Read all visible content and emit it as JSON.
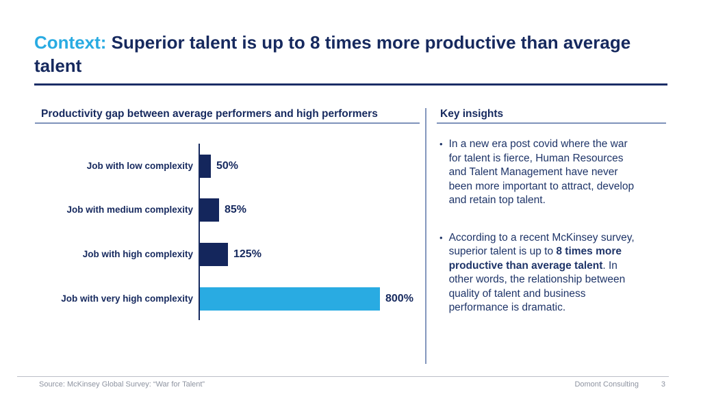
{
  "slide": {
    "title": {
      "prefix": "Context:",
      "rest": " Superior talent is up to 8 times more productive than average talent"
    },
    "left_panel": {
      "header": "Productivity gap between average performers and high performers"
    },
    "right_panel": {
      "header": "Key insights",
      "bullets": [
        {
          "lines": [
            [
              {
                "t": "In a new era post covid where the war"
              }
            ],
            [
              {
                "t": "for talent is fierce, Human Resources"
              }
            ],
            [
              {
                "t": "and Talent Management have never"
              }
            ],
            [
              {
                "t": "been more important to attract, develop"
              }
            ],
            [
              {
                "t": "and retain top talent."
              }
            ]
          ]
        },
        {
          "lines": [
            [
              {
                "t": "According to a recent McKinsey survey,"
              }
            ],
            [
              {
                "t": "superior talent is up to "
              },
              {
                "t": "8 times more",
                "bold": true
              }
            ],
            [
              {
                "t": "productive than average talent",
                "bold": true
              },
              {
                "t": ". In"
              }
            ],
            [
              {
                "t": "other words, the relationship between"
              }
            ],
            [
              {
                "t": "quality of talent and business"
              }
            ],
            [
              {
                "t": "performance is dramatic."
              }
            ]
          ]
        }
      ],
      "bullet_glyph": "•"
    },
    "footer": {
      "source": "Source: McKinsey Global Survey: “War for Talent”",
      "company": "Domont Consulting",
      "page": "3"
    }
  },
  "chart_data": {
    "type": "bar",
    "orientation": "horizontal",
    "title": "Productivity gap between average performers and high performers",
    "categories": [
      "Job with low complexity",
      "Job with medium complexity",
      "Job with high complexity",
      "Job with very high complexity"
    ],
    "values": [
      50,
      85,
      125,
      800
    ],
    "value_labels": [
      "50%",
      "85%",
      "125%",
      "800%"
    ],
    "bar_colors": [
      "#14265c",
      "#14265c",
      "#14265c",
      "#29abe2"
    ],
    "xlim": [
      0,
      800
    ],
    "grid": false,
    "legend": false
  },
  "colors": {
    "accent_blue": "#29abe2",
    "navy_text": "#16295e",
    "bar_navy": "#14265c",
    "bar_light_blue": "#29abe2",
    "divider_blue_gray": "#8497bd",
    "footer_gray": "#8d93a0"
  }
}
